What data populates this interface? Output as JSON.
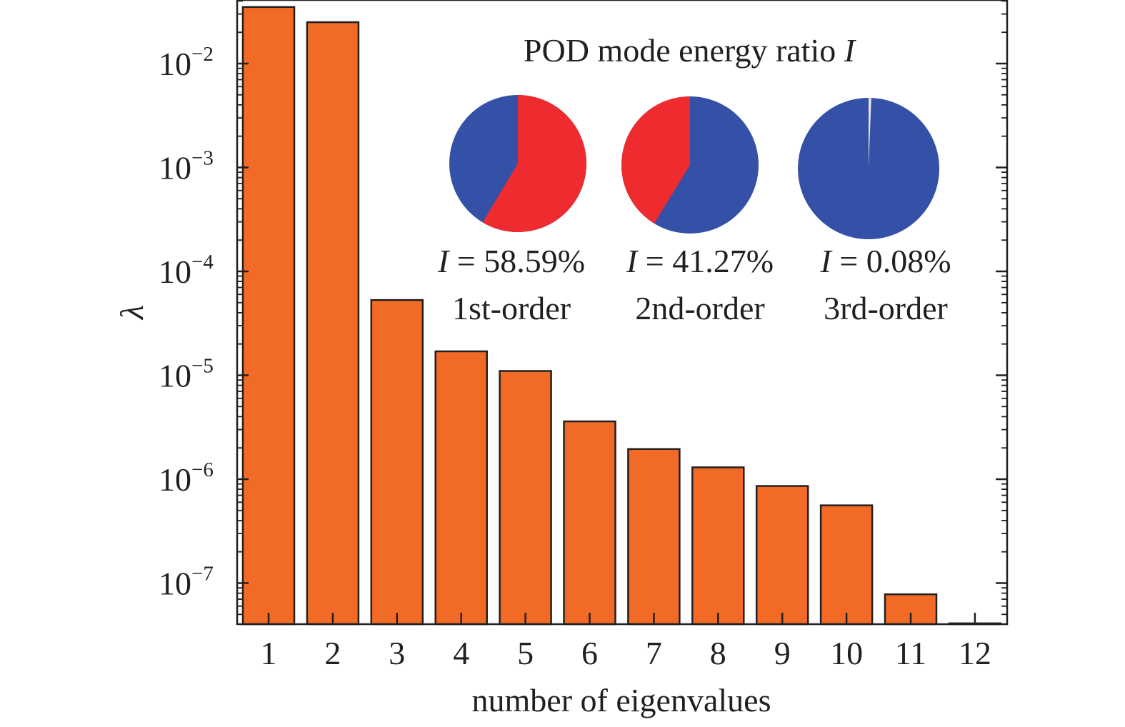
{
  "chart_data": [
    {
      "type": "bar",
      "title": "",
      "xlabel": "number of eigenvalues",
      "ylabel": "λ",
      "yscale": "log",
      "ylim": [
        4e-08,
        0.04
      ],
      "categories": [
        "1",
        "2",
        "3",
        "4",
        "5",
        "6",
        "7",
        "8",
        "9",
        "10",
        "11",
        "12"
      ],
      "values": [
        0.035,
        0.025,
        5.3e-05,
        1.7e-05,
        1.1e-05,
        3.6e-06,
        1.95e-06,
        1.3e-06,
        8.6e-07,
        5.6e-07,
        7.8e-08,
        4.1e-08
      ],
      "y_ticks": [
        {
          "value": 0.01,
          "base": "10",
          "exp": "−2"
        },
        {
          "value": 0.001,
          "base": "10",
          "exp": "−3"
        },
        {
          "value": 0.0001,
          "base": "10",
          "exp": "−4"
        },
        {
          "value": 1e-05,
          "base": "10",
          "exp": "−5"
        },
        {
          "value": 1e-06,
          "base": "10",
          "exp": "−6"
        },
        {
          "value": 1e-07,
          "base": "10",
          "exp": "−7"
        }
      ],
      "grid": false,
      "bar_color": "#f26b26"
    },
    {
      "type": "pie",
      "title": "POD mode energy ratio I",
      "title_text": "POD mode energy ratio ",
      "title_symbol": "I",
      "pies": [
        {
          "order": "1st-order",
          "symbol": "I",
          "value_text": " = 58.59%",
          "highlight_percent": 58.59
        },
        {
          "order": "2nd-order",
          "symbol": "I",
          "value_text": " = 41.27%",
          "highlight_percent": 41.27
        },
        {
          "order": "3rd-order",
          "symbol": "I",
          "value_text": " = 0.08%",
          "highlight_percent": 0.08
        }
      ],
      "colors": {
        "highlight_first": "#ee2b2e",
        "highlight_second": "#ee2b2e",
        "highlight_third": "#e6e6e6",
        "rest": "#3451a7"
      }
    }
  ]
}
